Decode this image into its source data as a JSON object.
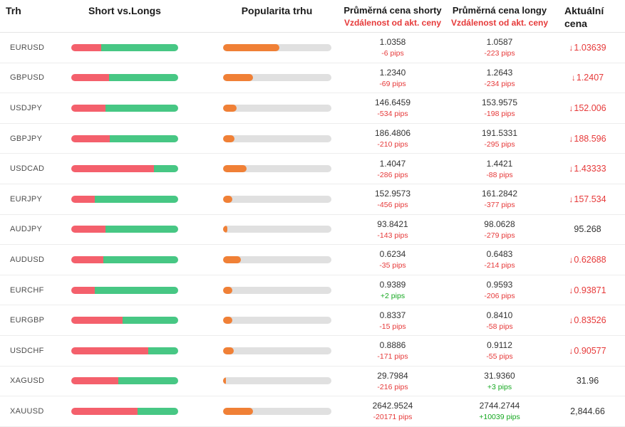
{
  "header": {
    "market": "Trh",
    "short_vs_longs": "Short vs.Longs",
    "popularity": "Popularita trhu",
    "avg_short": "Průměrná cena shorty",
    "avg_short_sub": "Vzdálenost od akt. ceny",
    "avg_long": "Průměrná cena longy",
    "avg_long_sub": "Vzdálenost od akt. ceny",
    "current": "Aktuální cena"
  },
  "icons": {
    "price_down_arrow": "↓"
  },
  "colors": {
    "short_bar": "#f4606c",
    "long_bar": "#47c784",
    "popularity_fill": "#f08036",
    "popularity_track": "#e0e0e0",
    "negative": "#e63939",
    "positive": "#15a820",
    "text": "#333333",
    "symbol_text": "#4d4d4d"
  },
  "chart_data": {
    "type": "table",
    "title": "Short vs.Longs / Popularita trhu",
    "columns": [
      "Trh",
      "Short % (red) vs Long % (green)",
      "Popularita trhu %",
      "Průměrná cena shorty",
      "Vzdálenost od akt. ceny (shorty)",
      "Průměrná cena longy",
      "Vzdálenost od akt. ceny (longy)",
      "Aktuální cena"
    ],
    "rows": [
      {
        "symbol": "EURUSD",
        "short_pct": 28,
        "long_pct": 72,
        "popularity_pct": 52,
        "short_price": "1.0358",
        "short_pips": "-6 pips",
        "short_pips_sign": "negative",
        "long_price": "1.0587",
        "long_pips": "-223 pips",
        "long_pips_sign": "negative",
        "current_price": "1.03639",
        "current_down": true
      },
      {
        "symbol": "GBPUSD",
        "short_pct": 35,
        "long_pct": 65,
        "popularity_pct": 28,
        "short_price": "1.2340",
        "short_pips": "-69 pips",
        "short_pips_sign": "negative",
        "long_price": "1.2643",
        "long_pips": "-234 pips",
        "long_pips_sign": "negative",
        "current_price": "1.2407",
        "current_down": true
      },
      {
        "symbol": "USDJPY",
        "short_pct": 32,
        "long_pct": 68,
        "popularity_pct": 13,
        "short_price": "146.6459",
        "short_pips": "-534 pips",
        "short_pips_sign": "negative",
        "long_price": "153.9575",
        "long_pips": "-198 pips",
        "long_pips_sign": "negative",
        "current_price": "152.006",
        "current_down": true
      },
      {
        "symbol": "GBPJPY",
        "short_pct": 36,
        "long_pct": 64,
        "popularity_pct": 11,
        "short_price": "186.4806",
        "short_pips": "-210 pips",
        "short_pips_sign": "negative",
        "long_price": "191.5331",
        "long_pips": "-295 pips",
        "long_pips_sign": "negative",
        "current_price": "188.596",
        "current_down": true
      },
      {
        "symbol": "USDCAD",
        "short_pct": 77,
        "long_pct": 23,
        "popularity_pct": 22,
        "short_price": "1.4047",
        "short_pips": "-286 pips",
        "short_pips_sign": "negative",
        "long_price": "1.4421",
        "long_pips": "-88 pips",
        "long_pips_sign": "negative",
        "current_price": "1.43333",
        "current_down": true
      },
      {
        "symbol": "EURJPY",
        "short_pct": 22,
        "long_pct": 78,
        "popularity_pct": 9,
        "short_price": "152.9573",
        "short_pips": "-456 pips",
        "short_pips_sign": "negative",
        "long_price": "161.2842",
        "long_pips": "-377 pips",
        "long_pips_sign": "negative",
        "current_price": "157.534",
        "current_down": true
      },
      {
        "symbol": "AUDJPY",
        "short_pct": 32,
        "long_pct": 68,
        "popularity_pct": 4,
        "short_price": "93.8421",
        "short_pips": "-143 pips",
        "short_pips_sign": "negative",
        "long_price": "98.0628",
        "long_pips": "-279 pips",
        "long_pips_sign": "negative",
        "current_price": "95.268",
        "current_down": false
      },
      {
        "symbol": "AUDUSD",
        "short_pct": 30,
        "long_pct": 70,
        "popularity_pct": 17,
        "short_price": "0.6234",
        "short_pips": "-35 pips",
        "short_pips_sign": "negative",
        "long_price": "0.6483",
        "long_pips": "-214 pips",
        "long_pips_sign": "negative",
        "current_price": "0.62688",
        "current_down": true
      },
      {
        "symbol": "EURCHF",
        "short_pct": 22,
        "long_pct": 78,
        "popularity_pct": 9,
        "short_price": "0.9389",
        "short_pips": "+2 pips",
        "short_pips_sign": "positive",
        "long_price": "0.9593",
        "long_pips": "-206 pips",
        "long_pips_sign": "negative",
        "current_price": "0.93871",
        "current_down": true
      },
      {
        "symbol": "EURGBP",
        "short_pct": 48,
        "long_pct": 52,
        "popularity_pct": 9,
        "short_price": "0.8337",
        "short_pips": "-15 pips",
        "short_pips_sign": "negative",
        "long_price": "0.8410",
        "long_pips": "-58 pips",
        "long_pips_sign": "negative",
        "current_price": "0.83526",
        "current_down": true
      },
      {
        "symbol": "USDCHF",
        "short_pct": 72,
        "long_pct": 28,
        "popularity_pct": 10,
        "short_price": "0.8886",
        "short_pips": "-171 pips",
        "short_pips_sign": "negative",
        "long_price": "0.9112",
        "long_pips": "-55 pips",
        "long_pips_sign": "negative",
        "current_price": "0.90577",
        "current_down": true
      },
      {
        "symbol": "XAGUSD",
        "short_pct": 44,
        "long_pct": 56,
        "popularity_pct": 3,
        "short_price": "29.7984",
        "short_pips": "-216 pips",
        "short_pips_sign": "negative",
        "long_price": "31.9360",
        "long_pips": "+3 pips",
        "long_pips_sign": "positive",
        "current_price": "31.96",
        "current_down": false
      },
      {
        "symbol": "XAUUSD",
        "short_pct": 62,
        "long_pct": 38,
        "popularity_pct": 28,
        "short_price": "2642.9524",
        "short_pips": "-20171 pips",
        "short_pips_sign": "negative",
        "long_price": "2744.2744",
        "long_pips": "+10039 pips",
        "long_pips_sign": "positive",
        "current_price": "2,844.66",
        "current_down": false
      }
    ]
  }
}
